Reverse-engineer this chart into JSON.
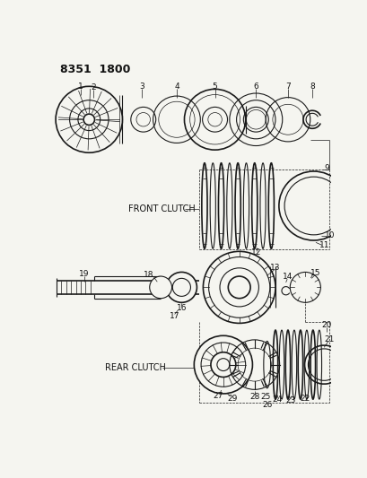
{
  "title": "8351  1800",
  "bg_color": "#f5f5f0",
  "line_color": "#1a1a1a",
  "label_color": "#111111",
  "front_clutch_label": "FRONT CLUTCH",
  "rear_clutch_label": "REAR CLUTCH"
}
